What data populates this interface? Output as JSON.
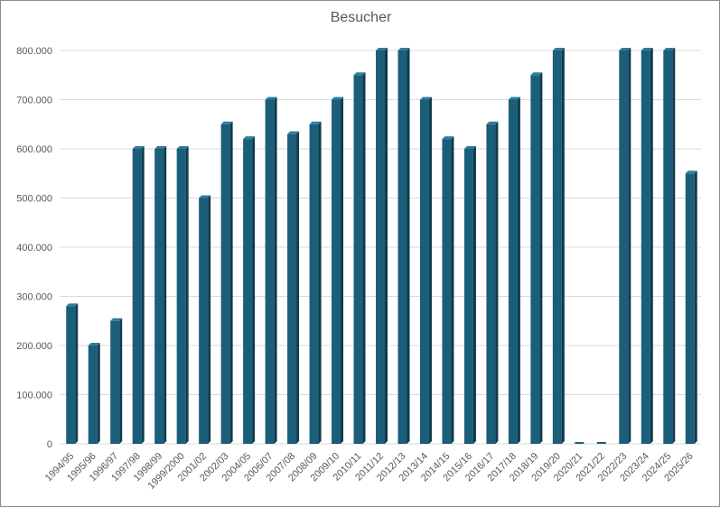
{
  "chart_data": {
    "type": "bar",
    "title": "Besucher",
    "xlabel": "",
    "ylabel": "",
    "categories": [
      "1994/95",
      "1995/96",
      "1996/97",
      "1997/98",
      "1998/99",
      "1999/2000",
      "2001/02",
      "2002/03",
      "2004/05",
      "2006/07",
      "2007/08",
      "2008/09",
      "2009/10",
      "2010/11",
      "2011/12",
      "2012/13",
      "2013/14",
      "2014/15",
      "2015/16",
      "2016/17",
      "2017/18",
      "2018/19",
      "2019/20",
      "2020/21",
      "2021/22",
      "2022/23",
      "2023/24",
      "2024/25",
      "2025/26"
    ],
    "values": [
      280000,
      200000,
      250000,
      600000,
      600000,
      600000,
      500000,
      650000,
      620000,
      700000,
      630000,
      650000,
      700000,
      750000,
      800000,
      800000,
      700000,
      620000,
      600000,
      650000,
      700000,
      750000,
      800000,
      0,
      0,
      800000,
      800000,
      800000,
      550000
    ],
    "ylim": [
      0,
      800000
    ],
    "yticks": [
      0,
      100000,
      200000,
      300000,
      400000,
      500000,
      600000,
      700000,
      800000
    ],
    "ytick_labels": [
      "0",
      "100.000",
      "200.000",
      "300.000",
      "400.000",
      "500.000",
      "600.000",
      "700.000",
      "800.000"
    ],
    "grid": true,
    "legend": "none",
    "bar_color": "#1b5e7a",
    "bar_side_color": "#0f3b4e",
    "bar_top_color": "#2e7c9c"
  }
}
